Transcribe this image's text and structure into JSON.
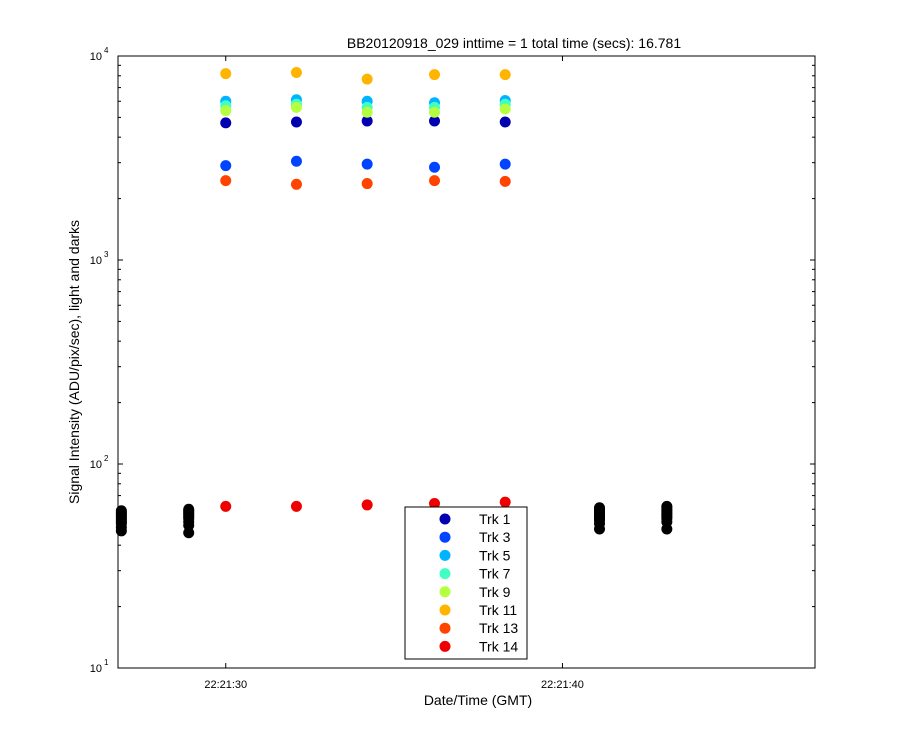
{
  "chart_data": {
    "type": "scatter",
    "title": "BB20120918_029 inttime = 1 total time (secs): 16.781",
    "xlabel": "Date/Time (GMT)",
    "ylabel": "Signal Intensity (ADU/pix/sec), light and darks",
    "yscale": "log",
    "ylim": [
      10,
      10000
    ],
    "xlim": [
      "22:21:26.8",
      "22:21:47.5"
    ],
    "x_ticks": [
      {
        "value": "22:21:30",
        "label": "22:21:30"
      },
      {
        "value": "22:21:40",
        "label": "22:21:40"
      }
    ],
    "y_ticks": [
      {
        "value": 10,
        "base": "10",
        "exp": "1"
      },
      {
        "value": 100,
        "base": "10",
        "exp": "2"
      },
      {
        "value": 1000,
        "base": "10",
        "exp": "3"
      },
      {
        "value": 10000,
        "base": "10",
        "exp": "4"
      }
    ],
    "grid": false,
    "legend_position": "bottom-center",
    "light_times": [
      "22:21:30.0",
      "22:21:32.1",
      "22:21:34.2",
      "22:21:36.2",
      "22:21:38.3"
    ],
    "series": [
      {
        "name": "Trk 1",
        "color": "#0000b0",
        "y": [
          4700,
          4750,
          4800,
          4800,
          4750
        ]
      },
      {
        "name": "Trk 3",
        "color": "#0044ff",
        "y": [
          2900,
          3050,
          2950,
          2850,
          2950
        ]
      },
      {
        "name": "Trk 5",
        "color": "#00b4ff",
        "y": [
          6000,
          6100,
          6000,
          5900,
          6050
        ]
      },
      {
        "name": "Trk 7",
        "color": "#40ffc0",
        "y": [
          5700,
          5800,
          5600,
          5600,
          5800
        ]
      },
      {
        "name": "Trk 9",
        "color": "#b4ff40",
        "y": [
          5400,
          5600,
          5300,
          5300,
          5500
        ]
      },
      {
        "name": "Trk 11",
        "color": "#ffb400",
        "y": [
          8200,
          8300,
          7700,
          8100,
          8100
        ]
      },
      {
        "name": "Trk 13",
        "color": "#ff4400",
        "y": [
          2450,
          2350,
          2370,
          2450,
          2430
        ]
      },
      {
        "name": "Trk 14",
        "color": "#ee0000",
        "y": [
          62,
          62,
          63,
          64,
          65
        ]
      }
    ],
    "darks": {
      "color": "#000000",
      "times": [
        "22:21:26.9",
        "22:21:28.9",
        "22:21:41.1",
        "22:21:43.1"
      ],
      "values": [
        [
          47,
          49,
          51,
          52,
          53,
          54,
          55,
          56,
          57,
          58,
          59
        ],
        [
          46,
          50,
          52,
          54,
          55,
          56,
          57,
          58,
          59,
          60
        ],
        [
          48,
          51,
          53,
          54,
          55,
          56,
          57,
          58,
          59,
          60,
          61
        ],
        [
          48,
          52,
          54,
          55,
          56,
          57,
          58,
          59,
          60,
          61,
          62
        ]
      ]
    }
  }
}
